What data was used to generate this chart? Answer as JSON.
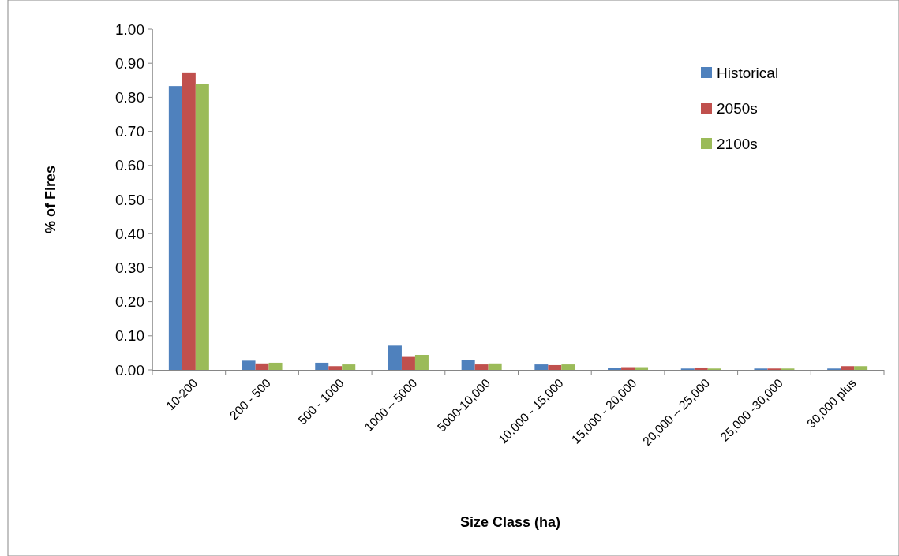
{
  "chart_data": {
    "type": "bar",
    "xlabel": "Size Class (ha)",
    "ylabel": "% of Fires",
    "categories": [
      "10-200",
      "200 - 500",
      "500 - 1000",
      "1000 – 5000",
      "5000-10,000",
      "10,000 - 15,000",
      "15,000 - 20,000",
      "20,000 – 25,000",
      "25,000 -30,000",
      "30,000 plus"
    ],
    "series": [
      {
        "name": "Historical",
        "color": "#4f81bd",
        "values": [
          0.833,
          0.027,
          0.021,
          0.071,
          0.03,
          0.016,
          0.006,
          0.004,
          0.004,
          0.004
        ]
      },
      {
        "name": "2050s",
        "color": "#c0504d",
        "values": [
          0.873,
          0.019,
          0.011,
          0.038,
          0.016,
          0.014,
          0.008,
          0.007,
          0.004,
          0.011
        ]
      },
      {
        "name": "2100s",
        "color": "#9bbb59",
        "values": [
          0.838,
          0.021,
          0.016,
          0.044,
          0.019,
          0.016,
          0.008,
          0.004,
          0.004,
          0.011
        ]
      }
    ],
    "ylim": [
      0,
      1
    ],
    "yticks": [
      {
        "value": 0,
        "label": "0.00"
      },
      {
        "value": 0.1,
        "label": "0.10"
      },
      {
        "value": 0.2,
        "label": "0.20"
      },
      {
        "value": 0.3,
        "label": "0.30"
      },
      {
        "value": 0.4,
        "label": "0.40"
      },
      {
        "value": 0.5,
        "label": "0.50"
      },
      {
        "value": 0.6,
        "label": "0.60"
      },
      {
        "value": 0.7,
        "label": "0.70"
      },
      {
        "value": 0.8,
        "label": "0.80"
      },
      {
        "value": 0.9,
        "label": "0.90"
      },
      {
        "value": 1,
        "label": "1.00"
      }
    ],
    "grid": false,
    "legend": "top right"
  }
}
